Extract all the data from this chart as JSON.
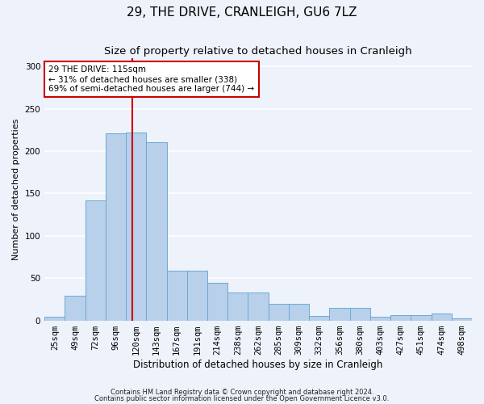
{
  "title": "29, THE DRIVE, CRANLEIGH, GU6 7LZ",
  "subtitle": "Size of property relative to detached houses in Cranleigh",
  "xlabel": "Distribution of detached houses by size in Cranleigh",
  "ylabel": "Number of detached properties",
  "categories": [
    "25sqm",
    "49sqm",
    "72sqm",
    "96sqm",
    "120sqm",
    "143sqm",
    "167sqm",
    "191sqm",
    "214sqm",
    "238sqm",
    "262sqm",
    "285sqm",
    "309sqm",
    "332sqm",
    "356sqm",
    "380sqm",
    "403sqm",
    "427sqm",
    "451sqm",
    "474sqm",
    "498sqm"
  ],
  "values": [
    4,
    29,
    142,
    221,
    222,
    210,
    59,
    59,
    44,
    33,
    33,
    20,
    20,
    5,
    15,
    15,
    4,
    6,
    6,
    8,
    2
  ],
  "bar_color": "#b8d0ea",
  "bar_edge_color": "#6aaad4",
  "background_color": "#eef2fb",
  "grid_color": "#ffffff",
  "property_line_color": "#cc0000",
  "annotation_text": "29 THE DRIVE: 115sqm\n← 31% of detached houses are smaller (338)\n69% of semi-detached houses are larger (744) →",
  "annotation_box_color": "#ffffff",
  "annotation_box_edge": "#cc0000",
  "footnote1": "Contains HM Land Registry data © Crown copyright and database right 2024.",
  "footnote2": "Contains public sector information licensed under the Open Government Licence v3.0.",
  "ylim": [
    0,
    310
  ],
  "yticks": [
    0,
    50,
    100,
    150,
    200,
    250,
    300
  ],
  "title_fontsize": 11,
  "subtitle_fontsize": 9.5,
  "xlabel_fontsize": 8.5,
  "ylabel_fontsize": 8,
  "tick_fontsize": 7.5,
  "annotation_fontsize": 7.5,
  "footnote_fontsize": 6
}
